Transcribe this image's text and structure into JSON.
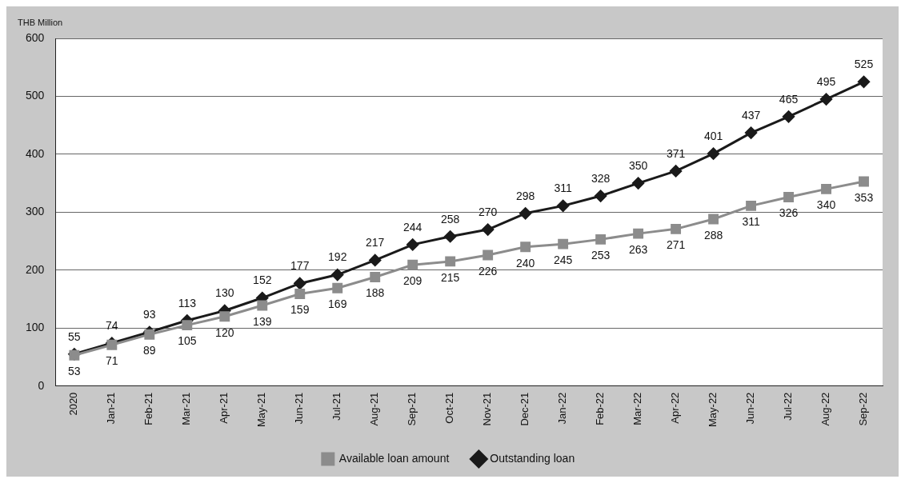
{
  "chart_data": {
    "type": "line",
    "ylabel": "THB Million",
    "categories": [
      "2020",
      "Jan-21",
      "Feb-21",
      "Mar-21",
      "Apr-21",
      "May-21",
      "Jun-21",
      "Jul-21",
      "Aug-21",
      "Sep-21",
      "Oct-21",
      "Nov-21",
      "Dec-21",
      "Jan-22",
      "Feb-22",
      "Mar-22",
      "Apr-22",
      "May-22",
      "Jun-22",
      "Jul-22",
      "Aug-22",
      "Sep-22"
    ],
    "series": [
      {
        "name": "Outstanding loan",
        "color": "#1a1a1a",
        "marker": "diamond",
        "values": [
          55,
          74,
          93,
          113,
          130,
          152,
          177,
          192,
          217,
          244,
          258,
          270,
          298,
          311,
          328,
          350,
          371,
          401,
          437,
          465,
          495,
          525
        ]
      },
      {
        "name": "Available loan amount",
        "color": "#8c8c8c",
        "marker": "square",
        "values": [
          53,
          71,
          89,
          105,
          120,
          139,
          159,
          169,
          188,
          209,
          215,
          226,
          240,
          245,
          253,
          263,
          271,
          288,
          311,
          326,
          340,
          353
        ]
      }
    ],
    "ylim": [
      0,
      600
    ],
    "yticks": [
      0,
      100,
      200,
      300,
      400,
      500,
      600
    ],
    "grid": "y",
    "legend": "bottom",
    "data_labels": true,
    "line_style": "solid"
  }
}
